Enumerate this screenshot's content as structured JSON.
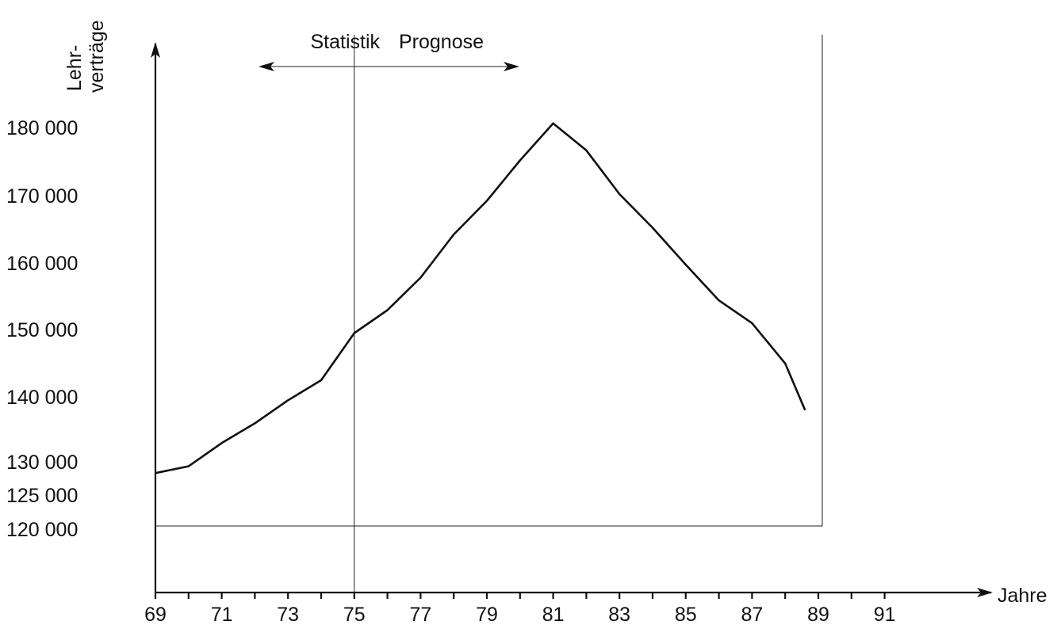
{
  "chart_data": {
    "type": "line",
    "xlabel": "Jahre",
    "ylabel_line1": "Lehr-",
    "ylabel_line2": "verträge",
    "annotations": {
      "left": "Statistik",
      "right": "Prognose"
    },
    "divider_year": 1975,
    "x_tick_labels": [
      "69",
      "71",
      "73",
      "75",
      "77",
      "79",
      "81",
      "83",
      "85",
      "87",
      "89",
      "91"
    ],
    "x_ticks": [
      1969,
      1970,
      1971,
      1972,
      1973,
      1974,
      1975,
      1976,
      1977,
      1978,
      1979,
      1980,
      1981,
      1982,
      1983,
      1984,
      1985,
      1986,
      1987,
      1988,
      1989,
      1990,
      1991
    ],
    "y_ticks": [
      {
        "value": 180000,
        "label": "180 000"
      },
      {
        "value": 170000,
        "label": "170 000"
      },
      {
        "value": 160000,
        "label": "160 000"
      },
      {
        "value": 150000,
        "label": "150 000"
      },
      {
        "value": 140000,
        "label": "140 000"
      },
      {
        "value": 130000,
        "label": "130 000"
      },
      {
        "value": 125000,
        "label": "125 000"
      },
      {
        "value": 120000,
        "label": "120 000"
      }
    ],
    "series": [
      {
        "x": [
          1969,
          1970,
          1971,
          1972,
          1973,
          1974,
          1975,
          1976,
          1977,
          1978,
          1979,
          1980,
          1981,
          1982,
          1983,
          1984,
          1985,
          1986,
          1987,
          1988
        ],
        "values": [
          128000,
          129000,
          132500,
          135500,
          139000,
          142000,
          149000,
          152500,
          157500,
          164000,
          169000,
          175000,
          180500,
          176500,
          170000,
          165000,
          159500,
          154000,
          150500,
          144500
        ]
      }
    ],
    "end_point": {
      "x": 1988.6,
      "y": 137500
    }
  }
}
